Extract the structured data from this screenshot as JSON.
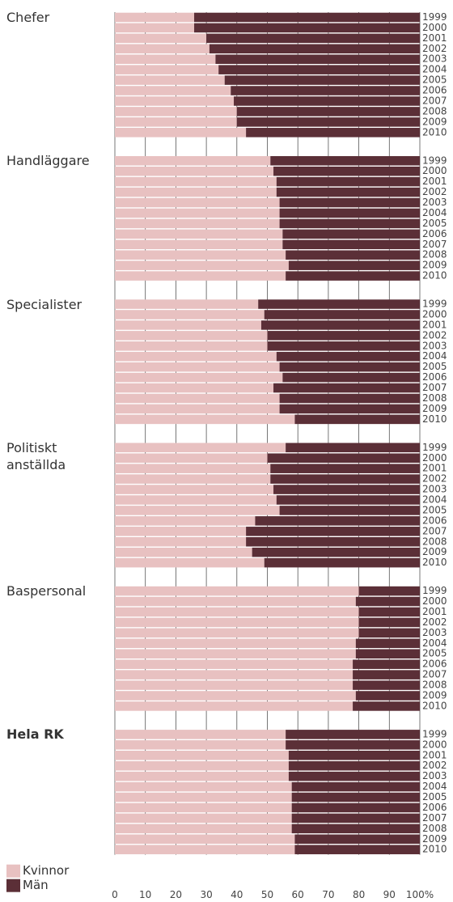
{
  "chart_data": {
    "type": "bar",
    "orientation": "horizontal",
    "stacked": true,
    "groups": [
      "Chefer",
      "Handläggare",
      "Specialister",
      "Politiskt anställda",
      "Baspersonal",
      "Hela RK"
    ],
    "categories": [
      "1999",
      "2000",
      "2001",
      "2002",
      "2003",
      "2004",
      "2005",
      "2006",
      "2007",
      "2008",
      "2009",
      "2010"
    ],
    "series": [
      {
        "name": "Kvinnor",
        "color": "#e8c1c1",
        "values": [
          [
            26,
            26,
            30,
            31,
            33,
            34,
            36,
            38,
            39,
            40,
            40,
            43
          ],
          [
            51,
            52,
            53,
            53,
            54,
            54,
            54,
            55,
            55,
            56,
            57,
            56
          ],
          [
            47,
            49,
            48,
            50,
            50,
            53,
            54,
            55,
            52,
            54,
            54,
            59
          ],
          [
            56,
            50,
            51,
            51,
            52,
            53,
            54,
            46,
            43,
            43,
            45,
            49
          ],
          [
            80,
            79,
            80,
            80,
            80,
            79,
            79,
            78,
            78,
            78,
            79,
            78
          ],
          [
            56,
            56,
            57,
            57,
            57,
            58,
            58,
            58,
            58,
            58,
            59,
            59
          ]
        ]
      },
      {
        "name": "Män",
        "color": "#5b2f37",
        "values": [
          [
            74,
            74,
            70,
            69,
            67,
            66,
            64,
            62,
            61,
            60,
            60,
            57
          ],
          [
            49,
            48,
            47,
            47,
            46,
            46,
            46,
            45,
            45,
            44,
            43,
            44
          ],
          [
            53,
            51,
            52,
            50,
            50,
            47,
            46,
            45,
            48,
            46,
            46,
            41
          ],
          [
            44,
            50,
            49,
            49,
            48,
            47,
            46,
            54,
            57,
            57,
            55,
            51
          ],
          [
            20,
            21,
            20,
            20,
            20,
            21,
            21,
            22,
            22,
            22,
            21,
            22
          ],
          [
            44,
            44,
            43,
            43,
            43,
            42,
            42,
            42,
            42,
            42,
            41,
            41
          ]
        ]
      }
    ],
    "xlim": [
      0,
      100
    ],
    "xticks": [
      0,
      10,
      20,
      30,
      40,
      50,
      60,
      70,
      80,
      90,
      {
        "value": 100,
        "label": "100%"
      }
    ],
    "grid": true
  }
}
